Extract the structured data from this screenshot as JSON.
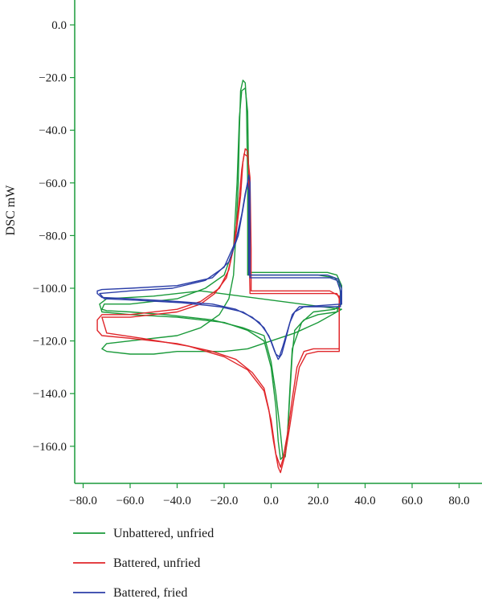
{
  "chart_data": {
    "type": "line",
    "title": "",
    "xlabel": "",
    "ylabel": "DSC mW",
    "xlim": [
      -90,
      90
    ],
    "ylim": [
      -175,
      8
    ],
    "xticks": [
      -80,
      -60,
      -40,
      -20,
      0,
      20,
      40,
      60,
      80
    ],
    "xtick_labels": [
      "−80.0",
      "−60.0",
      "−40.0",
      "−20.0",
      "0.0",
      "20.0",
      "40.0",
      "60.0",
      "80.0"
    ],
    "yticks": [
      0,
      -20,
      -40,
      -60,
      -80,
      -100,
      -120,
      -140,
      -160
    ],
    "ytick_labels": [
      "0.0",
      "−20.0",
      "−40.0",
      "−60.0",
      "−80.0",
      "−100.0",
      "−120.0",
      "−140.0",
      "−160.0"
    ],
    "grid": false,
    "legend_position": "bottom-left",
    "series": [
      {
        "name": "Unbattered, unfried",
        "color": "#1a9a3a",
        "loops": [
          [
            [
              30,
              -108
            ],
            [
              20,
              -113
            ],
            [
              10,
              -117
            ],
            [
              0,
              -120
            ],
            [
              -10,
              -123
            ],
            [
              -20,
              -124
            ],
            [
              -30,
              -124
            ],
            [
              -40,
              -124
            ],
            [
              -50,
              -125
            ],
            [
              -60,
              -125
            ],
            [
              -70,
              -124
            ],
            [
              -72,
              -123
            ],
            [
              -70,
              -121
            ],
            [
              -60,
              -120
            ],
            [
              -40,
              -118
            ],
            [
              -30,
              -115
            ],
            [
              -22,
              -110
            ],
            [
              -18,
              -104
            ],
            [
              -16,
              -95
            ],
            [
              -15,
              -80
            ],
            [
              -14,
              -60
            ],
            [
              -13.5,
              -40
            ],
            [
              -13,
              -25
            ],
            [
              -12,
              -21
            ],
            [
              -11,
              -22
            ],
            [
              -10.5,
              -30
            ],
            [
              -10,
              -60
            ],
            [
              -10,
              -95
            ],
            [
              0,
              -95
            ],
            [
              10,
              -95
            ],
            [
              20,
              -95
            ],
            [
              27,
              -96
            ],
            [
              29,
              -98
            ],
            [
              29.5,
              -102
            ],
            [
              29,
              -106
            ],
            [
              28,
              -109
            ],
            [
              20,
              -110
            ],
            [
              14,
              -112
            ],
            [
              10,
              -116
            ],
            [
              9,
              -125
            ],
            [
              8,
              -140
            ],
            [
              7,
              -155
            ],
            [
              6,
              -163
            ],
            [
              4,
              -165
            ],
            [
              3,
              -158
            ],
            [
              2,
              -145
            ],
            [
              0,
              -130
            ],
            [
              -3,
              -120
            ],
            [
              -10,
              -116
            ],
            [
              -20,
              -113
            ],
            [
              -40,
              -111
            ],
            [
              -60,
              -110
            ],
            [
              -72,
              -109
            ],
            [
              -73,
              -106
            ],
            [
              -70,
              -104
            ],
            [
              -50,
              -103
            ],
            [
              -40,
              -102
            ],
            [
              -30,
              -101
            ]
          ],
          [
            [
              -72,
              -108
            ],
            [
              -71,
              -106
            ],
            [
              -60,
              -106
            ],
            [
              -40,
              -104
            ],
            [
              -28,
              -100
            ],
            [
              -20,
              -95
            ],
            [
              -16,
              -85
            ],
            [
              -14.5,
              -60
            ],
            [
              -13.5,
              -35
            ],
            [
              -12.5,
              -25
            ],
            [
              -11,
              -24
            ],
            [
              -10,
              -33
            ],
            [
              -9.5,
              -60
            ],
            [
              -9.5,
              -94
            ],
            [
              10,
              -94
            ],
            [
              24,
              -94
            ],
            [
              28,
              -95
            ],
            [
              30,
              -99
            ],
            [
              30,
              -106
            ],
            [
              27,
              -108
            ],
            [
              18,
              -109
            ],
            [
              13,
              -113
            ],
            [
              9,
              -123
            ],
            [
              8,
              -138
            ],
            [
              7,
              -155
            ],
            [
              6,
              -164
            ],
            [
              5,
              -164
            ],
            [
              4,
              -155
            ],
            [
              2,
              -140
            ],
            [
              0,
              -128
            ],
            [
              -3,
              -118
            ],
            [
              -12,
              -115
            ],
            [
              -25,
              -112
            ],
            [
              -45,
              -110
            ],
            [
              -60,
              -109
            ],
            [
              -70,
              -108.5
            ]
          ]
        ]
      },
      {
        "name": "Battered, unfried",
        "color": "#e0262a",
        "loops": [
          [
            [
              -74,
              -112
            ],
            [
              -72,
              -110
            ],
            [
              -60,
              -110
            ],
            [
              -40,
              -108
            ],
            [
              -30,
              -105
            ],
            [
              -22,
              -100
            ],
            [
              -18,
              -93
            ],
            [
              -15,
              -80
            ],
            [
              -13,
              -65
            ],
            [
              -12,
              -52
            ],
            [
              -11,
              -47
            ],
            [
              -10,
              -48
            ],
            [
              -9.5,
              -55
            ],
            [
              -9.5,
              -80
            ],
            [
              -9,
              -102
            ],
            [
              0,
              -102
            ],
            [
              10,
              -102
            ],
            [
              20,
              -102
            ],
            [
              28,
              -102
            ],
            [
              29,
              -104
            ],
            [
              29,
              -115
            ],
            [
              29,
              -124
            ],
            [
              20,
              -124
            ],
            [
              15,
              -125
            ],
            [
              12,
              -130
            ],
            [
              10,
              -140
            ],
            [
              8,
              -152
            ],
            [
              6,
              -163
            ],
            [
              4,
              -170
            ],
            [
              3,
              -168
            ],
            [
              1,
              -158
            ],
            [
              -1,
              -146
            ],
            [
              -3,
              -138
            ],
            [
              -8,
              -132
            ],
            [
              -15,
              -127
            ],
            [
              -25,
              -124
            ],
            [
              -40,
              -121
            ],
            [
              -60,
              -119
            ],
            [
              -72,
              -118
            ],
            [
              -74,
              -116
            ]
          ],
          [
            [
              -72,
              -111
            ],
            [
              -60,
              -111
            ],
            [
              -40,
              -109
            ],
            [
              -30,
              -106
            ],
            [
              -24,
              -102
            ],
            [
              -19,
              -96
            ],
            [
              -16,
              -85
            ],
            [
              -14,
              -70
            ],
            [
              -12.5,
              -55
            ],
            [
              -11.5,
              -49
            ],
            [
              -10,
              -50
            ],
            [
              -9,
              -58
            ],
            [
              -8.5,
              -85
            ],
            [
              -8.5,
              -101
            ],
            [
              10,
              -101
            ],
            [
              25,
              -101
            ],
            [
              29,
              -103
            ],
            [
              29,
              -118
            ],
            [
              29,
              -123
            ],
            [
              18,
              -123
            ],
            [
              14,
              -124
            ],
            [
              11,
              -130
            ],
            [
              9,
              -142
            ],
            [
              7,
              -155
            ],
            [
              5,
              -165
            ],
            [
              4,
              -168
            ],
            [
              2,
              -163
            ],
            [
              0,
              -150
            ],
            [
              -3,
              -139
            ],
            [
              -10,
              -131
            ],
            [
              -20,
              -126
            ],
            [
              -35,
              -122
            ],
            [
              -55,
              -119
            ],
            [
              -70,
              -117
            ]
          ]
        ]
      },
      {
        "name": "Battered, fried",
        "color": "#2b3ea8",
        "loops": [
          [
            [
              -74,
              -101
            ],
            [
              -72,
              -100.5
            ],
            [
              -60,
              -100
            ],
            [
              -40,
              -99
            ],
            [
              -25,
              -96
            ],
            [
              -18,
              -90
            ],
            [
              -14,
              -80
            ],
            [
              -12,
              -70
            ],
            [
              -10.5,
              -62
            ],
            [
              -9.5,
              -57
            ],
            [
              -9,
              -60
            ],
            [
              -9,
              -80
            ],
            [
              -9,
              -96
            ],
            [
              10,
              -96
            ],
            [
              25,
              -96
            ],
            [
              28,
              -97
            ],
            [
              29.5,
              -101
            ],
            [
              29.5,
              -107
            ],
            [
              20,
              -107
            ],
            [
              12,
              -107
            ],
            [
              9,
              -110
            ],
            [
              7,
              -116
            ],
            [
              5,
              -122
            ],
            [
              3.5,
              -126
            ],
            [
              2,
              -125
            ],
            [
              0,
              -120
            ],
            [
              -3,
              -115
            ],
            [
              -8,
              -111
            ],
            [
              -15,
              -108
            ],
            [
              -25,
              -106
            ],
            [
              -40,
              -105
            ],
            [
              -60,
              -104
            ],
            [
              -72,
              -103.5
            ],
            [
              -74,
              -102
            ]
          ],
          [
            [
              -73,
              -102
            ],
            [
              -60,
              -101
            ],
            [
              -42,
              -100
            ],
            [
              -28,
              -97
            ],
            [
              -20,
              -92
            ],
            [
              -15,
              -82
            ],
            [
              -12.5,
              -72
            ],
            [
              -11,
              -64
            ],
            [
              -10,
              -60
            ],
            [
              -9.5,
              -63
            ],
            [
              -9.5,
              -82
            ],
            [
              -9.5,
              -95
            ],
            [
              10,
              -95
            ],
            [
              24,
              -95
            ],
            [
              28.5,
              -96.5
            ],
            [
              30,
              -100
            ],
            [
              30,
              -106
            ],
            [
              22,
              -106.5
            ],
            [
              14,
              -107
            ],
            [
              10,
              -109
            ],
            [
              8,
              -113
            ],
            [
              6,
              -120
            ],
            [
              4.5,
              -125
            ],
            [
              3,
              -127
            ],
            [
              1.5,
              -124
            ],
            [
              -1,
              -118
            ],
            [
              -5,
              -113
            ],
            [
              -12,
              -109
            ],
            [
              -22,
              -107
            ],
            [
              -38,
              -105.5
            ],
            [
              -58,
              -104.5
            ],
            [
              -71,
              -104
            ]
          ]
        ]
      }
    ]
  }
}
